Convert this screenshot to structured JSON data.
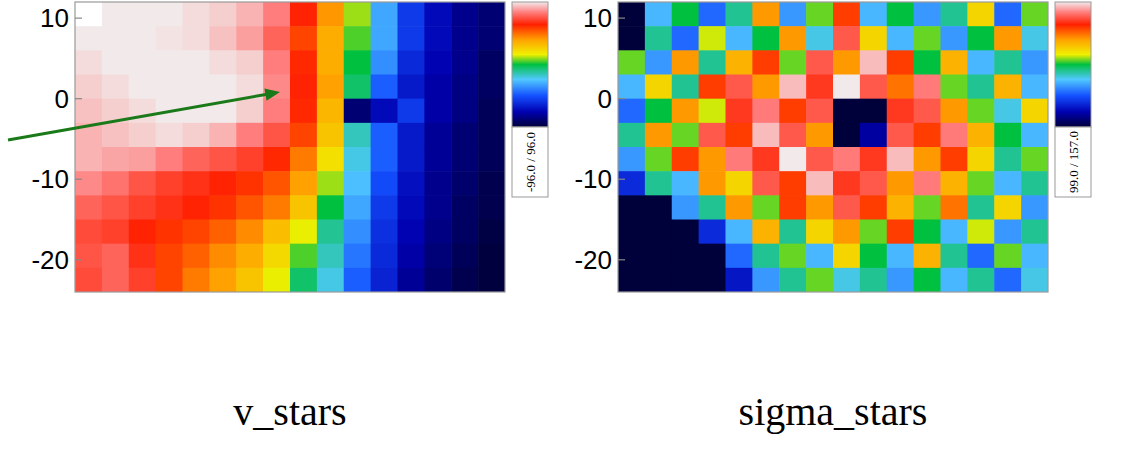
{
  "chart_data": [
    {
      "type": "heatmap",
      "title": "v_stars",
      "xlim": [
        -24,
        32
      ],
      "ylim": [
        -24,
        12
      ],
      "yticks": [
        10,
        0,
        -10,
        -20
      ],
      "tick_labels": "y",
      "color_range": [
        -96,
        96
      ],
      "color_label": "-96.0 / 96.0",
      "cells": [
        [
          null,
          96,
          96,
          96,
          94,
          92,
          88,
          80,
          62,
          40,
          10,
          -30,
          -55,
          -70,
          -80,
          -85
        ],
        [
          96,
          96,
          96,
          95,
          94,
          90,
          85,
          75,
          55,
          35,
          5,
          -30,
          -55,
          -70,
          -80,
          -85
        ],
        [
          94,
          96,
          96,
          96,
          96,
          94,
          92,
          80,
          60,
          35,
          0,
          -35,
          -60,
          -72,
          -80,
          -88
        ],
        [
          92,
          94,
          96,
          96,
          96,
          96,
          94,
          82,
          62,
          38,
          -5,
          -45,
          -65,
          -75,
          -82,
          -88
        ],
        [
          90,
          92,
          94,
          96,
          96,
          96,
          92,
          80,
          60,
          32,
          -85,
          -70,
          -55,
          -75,
          -82,
          -90
        ],
        [
          88,
          90,
          92,
          94,
          92,
          88,
          80,
          72,
          55,
          28,
          -15,
          -45,
          -65,
          -78,
          -85,
          -90
        ],
        [
          88,
          86,
          85,
          80,
          75,
          72,
          68,
          60,
          45,
          20,
          -20,
          -45,
          -65,
          -78,
          -85,
          -90
        ],
        [
          82,
          78,
          72,
          68,
          65,
          62,
          58,
          52,
          38,
          10,
          -25,
          -50,
          -68,
          -80,
          -86,
          -92
        ],
        [
          75,
          72,
          68,
          65,
          62,
          58,
          52,
          45,
          28,
          0,
          -30,
          -55,
          -70,
          -80,
          -88,
          -92
        ],
        [
          70,
          68,
          62,
          58,
          55,
          50,
          42,
          30,
          15,
          -10,
          -35,
          -58,
          -72,
          -82,
          -88,
          -94
        ],
        [
          72,
          75,
          65,
          55,
          50,
          42,
          35,
          22,
          5,
          -15,
          -40,
          -60,
          -75,
          -84,
          -90,
          -95
        ],
        [
          70,
          75,
          68,
          55,
          45,
          38,
          28,
          15,
          -5,
          -20,
          -45,
          -62,
          -78,
          -86,
          -92,
          -95
        ]
      ]
    },
    {
      "type": "heatmap",
      "title": "sigma_stars",
      "xlim": [
        -24,
        32
      ],
      "ylim": [
        -24,
        12
      ],
      "yticks": [
        10,
        0,
        -10,
        -20
      ],
      "tick_labels": "y",
      "color_range": [
        99,
        157
      ],
      "color_label": "99.0 / 157.0",
      "cells": [
        [
          99,
          120,
          128,
          115,
          125,
          140,
          118,
          130,
          145,
          120,
          128,
          118,
          125,
          135,
          115,
          130
        ],
        [
          99,
          125,
          115,
          132,
          120,
          128,
          140,
          122,
          150,
          135,
          120,
          130,
          118,
          128,
          140,
          122
        ],
        [
          130,
          118,
          140,
          125,
          138,
          145,
          130,
          150,
          140,
          155,
          145,
          128,
          138,
          120,
          125,
          118
        ],
        [
          120,
          135,
          125,
          145,
          150,
          140,
          155,
          148,
          157,
          150,
          142,
          152,
          130,
          125,
          138,
          120
        ],
        [
          115,
          128,
          140,
          132,
          148,
          152,
          145,
          150,
          99,
          99,
          148,
          150,
          140,
          130,
          122,
          135
        ],
        [
          125,
          140,
          130,
          150,
          145,
          155,
          150,
          140,
          99,
          105,
          150,
          145,
          152,
          138,
          128,
          120
        ],
        [
          118,
          130,
          145,
          140,
          152,
          148,
          157,
          150,
          152,
          148,
          155,
          140,
          145,
          135,
          125,
          130
        ],
        [
          110,
          125,
          120,
          140,
          135,
          150,
          145,
          155,
          148,
          150,
          140,
          152,
          138,
          130,
          120,
          125
        ],
        [
          99,
          99,
          118,
          125,
          140,
          130,
          145,
          140,
          150,
          145,
          138,
          130,
          142,
          125,
          135,
          118
        ],
        [
          99,
          99,
          99,
          110,
          120,
          138,
          125,
          135,
          140,
          130,
          145,
          128,
          120,
          132,
          118,
          125
        ],
        [
          99,
          99,
          99,
          99,
          115,
          125,
          130,
          120,
          135,
          128,
          120,
          138,
          125,
          115,
          130,
          120
        ],
        [
          99,
          99,
          99,
          99,
          108,
          118,
          125,
          130,
          122,
          125,
          118,
          128,
          120,
          125,
          115,
          122
        ]
      ]
    }
  ]
}
